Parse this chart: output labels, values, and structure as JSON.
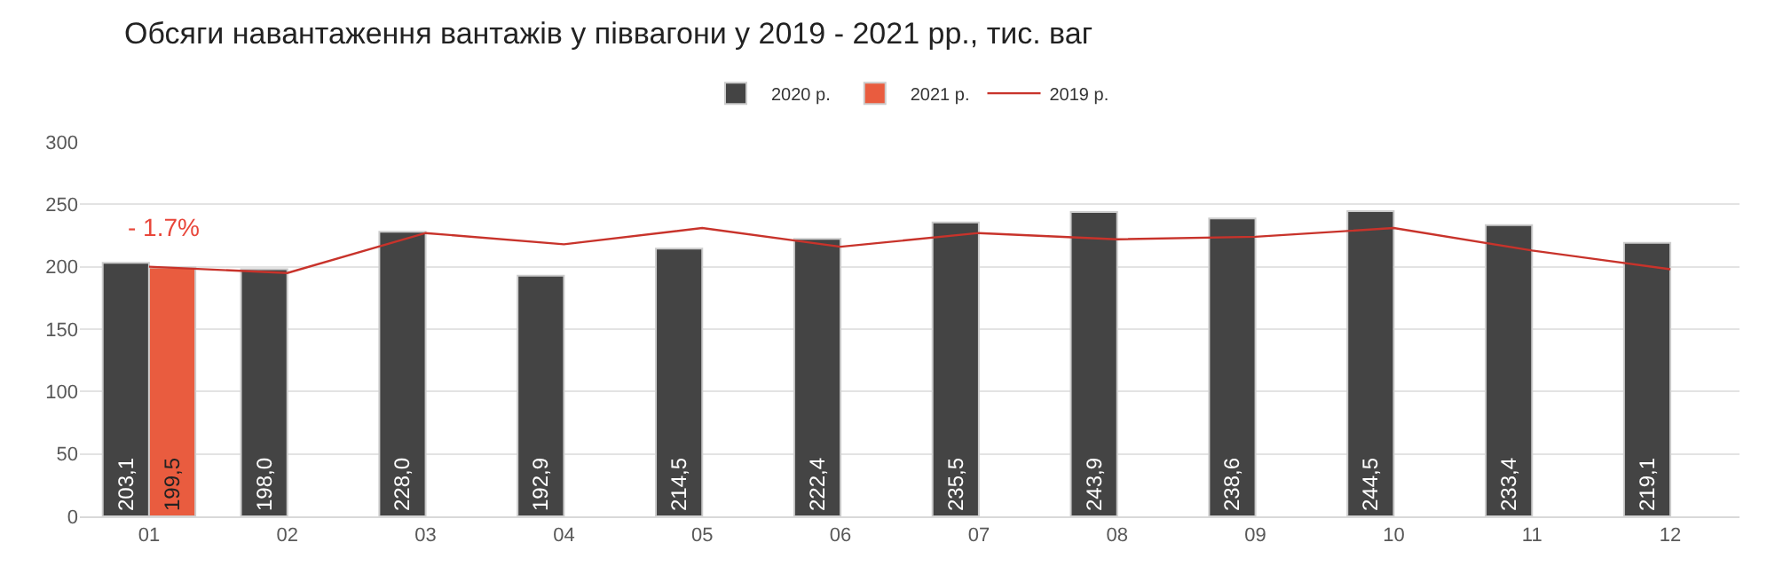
{
  "chart_data": {
    "type": "bar",
    "title": "Обсяги навантаження вантажів у піввагони у 2019 - 2021 рр., тис. ваг",
    "categories": [
      "01",
      "02",
      "03",
      "04",
      "05",
      "06",
      "07",
      "08",
      "09",
      "10",
      "11",
      "12"
    ],
    "series": [
      {
        "name": "2020 р.",
        "type": "bar",
        "color": "#444444",
        "values": [
          203.1,
          198.0,
          228.0,
          192.9,
          214.5,
          222.4,
          235.5,
          243.9,
          238.6,
          244.5,
          233.4,
          219.1
        ],
        "value_labels": [
          "203,1",
          "198,0",
          "228,0",
          "192,9",
          "214,5",
          "222,4",
          "235,5",
          "243,9",
          "238,6",
          "244,5",
          "233,4",
          "219,1"
        ]
      },
      {
        "name": "2021 р.",
        "type": "bar",
        "color": "#e95c3f",
        "values": [
          199.5,
          null,
          null,
          null,
          null,
          null,
          null,
          null,
          null,
          null,
          null,
          null
        ],
        "value_labels": [
          "199,5",
          null,
          null,
          null,
          null,
          null,
          null,
          null,
          null,
          null,
          null,
          null
        ]
      },
      {
        "name": "2019 р.",
        "type": "line",
        "color": "#c8332b",
        "values": [
          200,
          195,
          227,
          218,
          231,
          216,
          227,
          222,
          224,
          231,
          213,
          198
        ]
      }
    ],
    "ylim": [
      0,
      300
    ],
    "yticks": [
      0,
      50,
      100,
      150,
      200,
      250,
      300
    ],
    "grid": "y",
    "legend": "top",
    "marker": "none",
    "line_style": "solid",
    "annotations": [
      "- 1.7%"
    ]
  }
}
